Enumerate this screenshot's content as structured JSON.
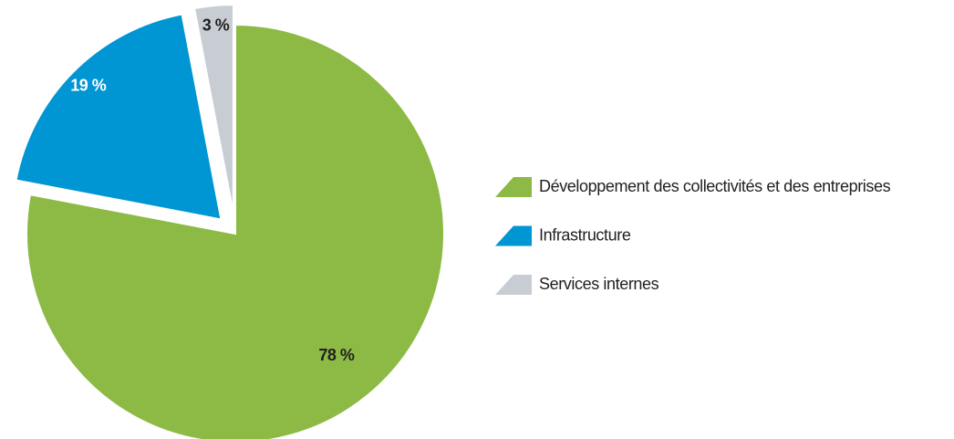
{
  "chart_data": {
    "type": "pie",
    "categories": [
      "Développement des collectivités et des entreprises",
      "Infrastructure",
      "Services internes"
    ],
    "values": [
      78,
      19,
      3
    ],
    "value_labels": [
      "78 %",
      "19 %",
      "3 %"
    ],
    "colors": [
      "#8cba45",
      "#0095d3",
      "#c8cdd4"
    ]
  }
}
